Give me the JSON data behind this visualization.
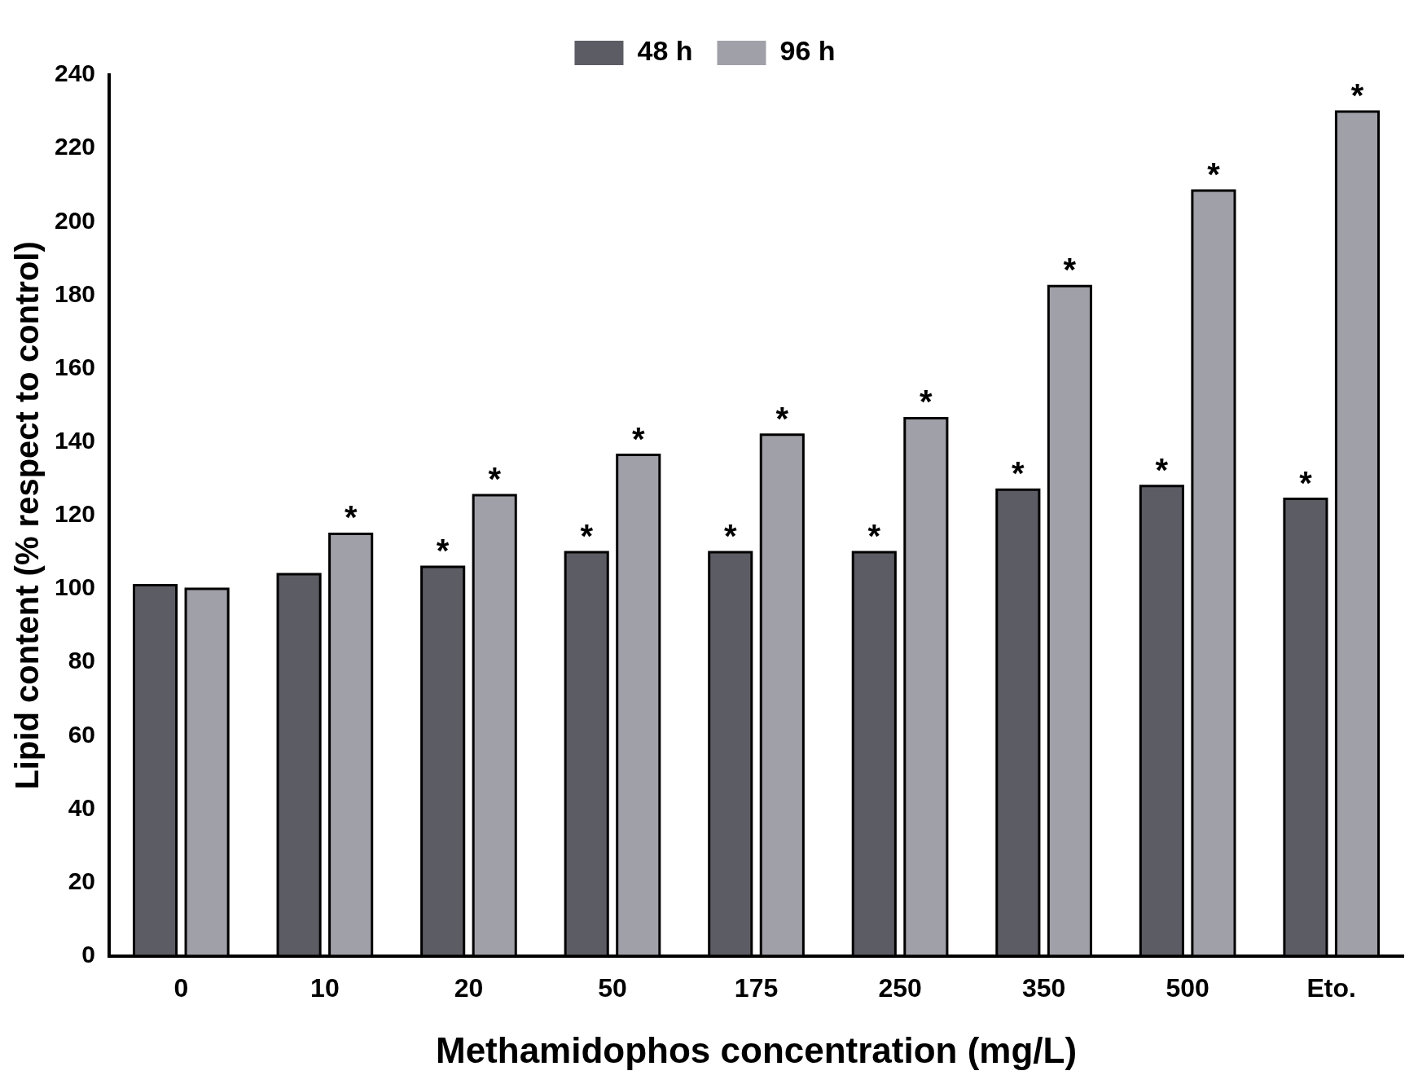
{
  "chart_data": {
    "type": "bar",
    "xlabel": "Methamidophos concentration (mg/L)",
    "ylabel": "Lipid content (% respect to control)",
    "categories": [
      "0",
      "10",
      "20",
      "50",
      "175",
      "250",
      "350",
      "500",
      "Eto."
    ],
    "series": [
      {
        "name": "48 h",
        "color": "#5c5c64",
        "values": [
          101,
          104,
          106,
          110,
          110,
          110,
          127,
          128,
          124.5
        ],
        "value_labels": [
          null,
          null,
          "*",
          "*",
          "*",
          "*",
          "*",
          "*",
          "*"
        ]
      },
      {
        "name": "96 h",
        "color": "#a0a0a8",
        "values": [
          100,
          115,
          125.5,
          136.5,
          142,
          146.5,
          182.5,
          208.5,
          230
        ],
        "value_labels": [
          null,
          "*",
          "*",
          "*",
          "*",
          "*",
          "*",
          "*",
          "*"
        ]
      }
    ],
    "ylim": [
      0,
      240
    ],
    "yticks": [
      0,
      20,
      40,
      60,
      80,
      100,
      120,
      140,
      160,
      180,
      200,
      220,
      240
    ],
    "grid": false,
    "legend": "top"
  }
}
